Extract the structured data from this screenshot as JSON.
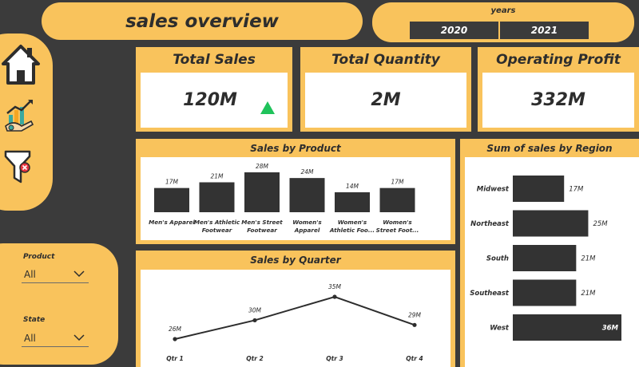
{
  "header": {
    "title": "sales overview"
  },
  "years_slicer": {
    "label": "years",
    "options": [
      "2020",
      "2021"
    ]
  },
  "nav": {
    "items": [
      "home-icon",
      "growth-icon",
      "filter-clear-icon"
    ]
  },
  "filters": {
    "product": {
      "label": "Product",
      "value": "All"
    },
    "state": {
      "label": "State",
      "value": "All"
    }
  },
  "kpis": {
    "total_sales": {
      "title": "Total Sales",
      "value": "120M",
      "trend_color": "#1fc35b"
    },
    "total_quantity": {
      "title": "Total Quantity",
      "value": "2M"
    },
    "operating_profit": {
      "title": "Operating Profit",
      "value": "332M"
    }
  },
  "colors": {
    "accent": "#f9c35c",
    "background": "#3b3b3b",
    "bar": "#333333"
  },
  "chart_data": [
    {
      "type": "bar",
      "title": "Sales by Product",
      "categories": [
        [
          "Men's Apparel"
        ],
        [
          "Men's Athletic",
          "Footwear"
        ],
        [
          "Men's Street",
          "Footwear"
        ],
        [
          "Women's",
          "Apparel"
        ],
        [
          "Women's",
          "Athletic Foo..."
        ],
        [
          "Women's",
          "Street Foot..."
        ]
      ],
      "values": [
        17,
        21,
        28,
        24,
        14,
        17
      ],
      "data_labels": [
        "17M",
        "21M",
        "28M",
        "24M",
        "14M",
        "17M"
      ]
    },
    {
      "type": "line",
      "title": "Sales by Quarter",
      "categories": [
        "Qtr 1",
        "Qtr 2",
        "Qtr 3",
        "Qtr 4"
      ],
      "values": [
        26,
        30,
        35,
        29
      ],
      "data_labels": [
        "26M",
        "30M",
        "35M",
        "29M"
      ]
    },
    {
      "type": "bar",
      "orientation": "horizontal",
      "title": "Sum of sales by Region",
      "categories": [
        "Midwest",
        "Northeast",
        "South",
        "Southeast",
        "West"
      ],
      "values": [
        17,
        25,
        21,
        21,
        36
      ],
      "data_labels": [
        "17M",
        "25M",
        "21M",
        "21M",
        "36M"
      ]
    }
  ]
}
